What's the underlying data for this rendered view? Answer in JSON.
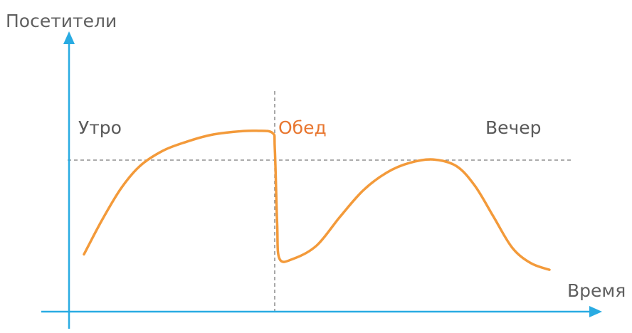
{
  "chart_data": {
    "type": "line",
    "ylabel": "Посетители",
    "xlabel": "Время",
    "annotations": [
      {
        "text": "Утро",
        "highlight": false
      },
      {
        "text": "Обед",
        "highlight": true
      },
      {
        "text": "Вечер",
        "highlight": false
      }
    ],
    "reference_lines": {
      "vertical_marker": "Обед",
      "horizontal_level": "peak"
    },
    "curve_points": [
      [
        0.0,
        0.26
      ],
      [
        0.04,
        0.42
      ],
      [
        0.08,
        0.56
      ],
      [
        0.12,
        0.66
      ],
      [
        0.17,
        0.73
      ],
      [
        0.22,
        0.77
      ],
      [
        0.27,
        0.8
      ],
      [
        0.32,
        0.815
      ],
      [
        0.37,
        0.82
      ],
      [
        0.405,
        0.81
      ],
      [
        0.41,
        0.74
      ],
      [
        0.415,
        0.4
      ],
      [
        0.42,
        0.24
      ],
      [
        0.45,
        0.24
      ],
      [
        0.5,
        0.3
      ],
      [
        0.55,
        0.43
      ],
      [
        0.6,
        0.55
      ],
      [
        0.65,
        0.63
      ],
      [
        0.7,
        0.675
      ],
      [
        0.75,
        0.69
      ],
      [
        0.8,
        0.66
      ],
      [
        0.84,
        0.57
      ],
      [
        0.88,
        0.43
      ],
      [
        0.92,
        0.29
      ],
      [
        0.96,
        0.22
      ],
      [
        1.0,
        0.19
      ]
    ],
    "grid": false,
    "legend": "none"
  },
  "colors": {
    "axis": "#29abe2",
    "curve": "#f39a3a",
    "reference": "#7a7a7a",
    "highlight": "#e8762f",
    "text": "#5a5a5a"
  }
}
